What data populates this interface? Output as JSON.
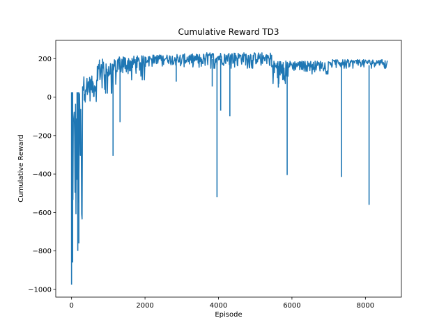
{
  "chart_data": {
    "type": "line",
    "title": "Cumulative Reward TD3",
    "xlabel": "Episode",
    "ylabel": "Cumulative Reward",
    "xlim": [
      -430,
      8980
    ],
    "ylim": [
      -1040,
      295
    ],
    "x_ticks": [
      0,
      2000,
      4000,
      6000,
      8000
    ],
    "y_ticks": [
      -1000,
      -800,
      -600,
      -400,
      -200,
      0,
      200
    ],
    "grid": false,
    "legend": "none",
    "series": [
      {
        "name": "Cumulative Reward",
        "color": "#1f77b4",
        "segments": [
          {
            "x_start": 0,
            "x_end": 300,
            "low": -980,
            "high": 30
          },
          {
            "x_start": 300,
            "x_end": 700,
            "low": -50,
            "high": 110
          },
          {
            "x_start": 700,
            "x_end": 1300,
            "low": 20,
            "high": 200
          },
          {
            "x_start": 1300,
            "x_end": 2000,
            "low": 90,
            "high": 215
          },
          {
            "x_start": 2000,
            "x_end": 2800,
            "low": 160,
            "high": 220
          },
          {
            "x_start": 2800,
            "x_end": 3600,
            "low": 140,
            "high": 225
          },
          {
            "x_start": 3600,
            "x_end": 5450,
            "low": 150,
            "high": 232
          },
          {
            "x_start": 5450,
            "x_end": 5900,
            "low": 70,
            "high": 190
          },
          {
            "x_start": 5900,
            "x_end": 7000,
            "low": 120,
            "high": 188
          },
          {
            "x_start": 7000,
            "x_end": 8600,
            "low": 150,
            "high": 195
          }
        ],
        "spikes": [
          {
            "x": 0,
            "y": -975
          },
          {
            "x": 30,
            "y": -860
          },
          {
            "x": 150,
            "y": -350
          },
          {
            "x": 170,
            "y": -800
          },
          {
            "x": 200,
            "y": -760
          },
          {
            "x": 1130,
            "y": -305
          },
          {
            "x": 1320,
            "y": -130
          },
          {
            "x": 2850,
            "y": 80
          },
          {
            "x": 3830,
            "y": 55
          },
          {
            "x": 3960,
            "y": -520
          },
          {
            "x": 4060,
            "y": -70
          },
          {
            "x": 4310,
            "y": -100
          },
          {
            "x": 5630,
            "y": 50
          },
          {
            "x": 5870,
            "y": -405
          },
          {
            "x": 7350,
            "y": -415
          },
          {
            "x": 8100,
            "y": -560
          }
        ]
      }
    ]
  }
}
